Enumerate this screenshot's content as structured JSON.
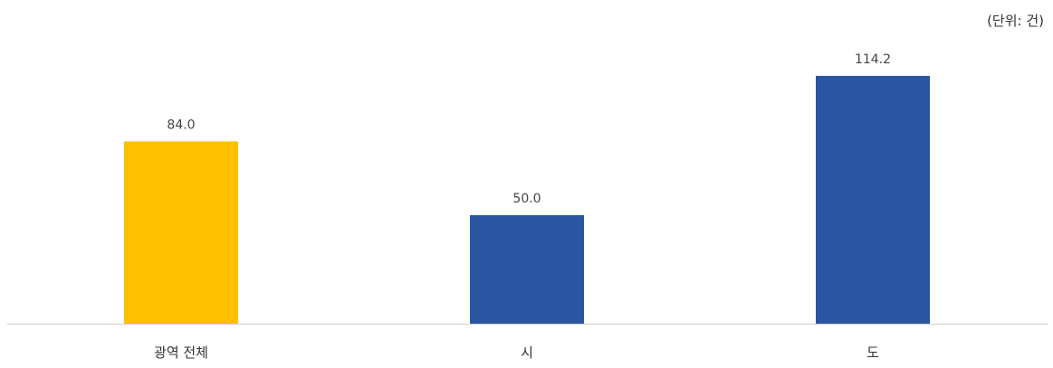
{
  "unit_text": "(단위: 건)",
  "chart_data": {
    "type": "bar",
    "categories": [
      "광역 전체",
      "시",
      "도"
    ],
    "values": [
      84.0,
      50.0,
      114.2
    ],
    "value_labels": [
      "84.0",
      "50.0",
      "114.2"
    ],
    "colors": [
      "#FFC000",
      "#2A55A0",
      "#2A55A0"
    ],
    "title": "",
    "xlabel": "",
    "ylabel": "",
    "unit": "(단위: 건)",
    "ylim": [
      0,
      130
    ],
    "grid": false,
    "legend": "none"
  }
}
